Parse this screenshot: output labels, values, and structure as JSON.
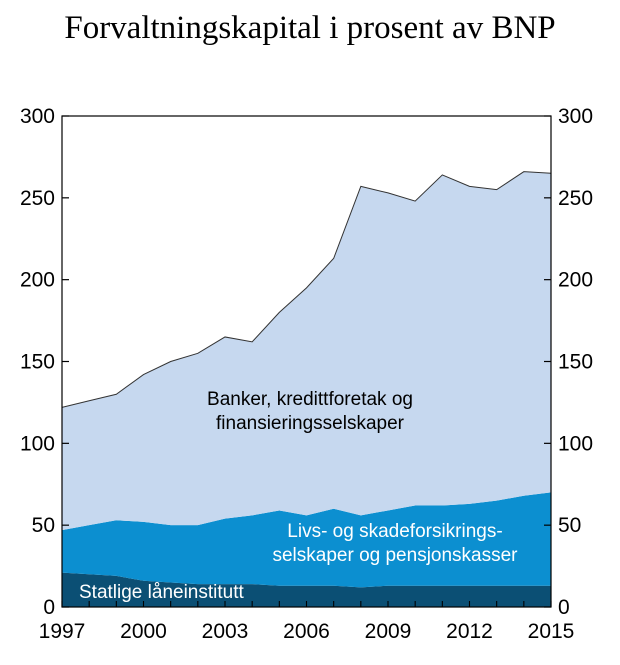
{
  "chart_data": {
    "type": "area",
    "stacked": true,
    "title": "Forvaltningskapital i prosent av BNP",
    "xlabel": "",
    "ylabel": "",
    "x": [
      1997,
      1998,
      1999,
      2000,
      2001,
      2002,
      2003,
      2004,
      2005,
      2006,
      2007,
      2008,
      2009,
      2010,
      2011,
      2012,
      2013,
      2014,
      2015
    ],
    "xlim": [
      1997,
      2015
    ],
    "ylim": [
      0,
      300
    ],
    "x_ticks": [
      "1997",
      "2000",
      "2003",
      "2006",
      "2009",
      "2012",
      "2015"
    ],
    "y_ticks": [
      "0",
      "50",
      "100",
      "150",
      "200",
      "250",
      "300"
    ],
    "grid": false,
    "legend": "none",
    "series": [
      {
        "name": "Statlige låneinstitutt",
        "color": "#0b4f74",
        "label_color": "#ffffff",
        "values": [
          21,
          20,
          19,
          16,
          15,
          14,
          14,
          14,
          13,
          13,
          13,
          12,
          13,
          13,
          13,
          13,
          13,
          13,
          13
        ]
      },
      {
        "name": "Livs- og skadeforsikrings-selskaper og pensjonskasser",
        "label_lines": [
          "Livs- og skadeforsikrings-",
          "selskaper og pensjonskasser"
        ],
        "color": "#0c8fd0",
        "label_color": "#ffffff",
        "values": [
          26,
          30,
          34,
          36,
          35,
          36,
          40,
          42,
          46,
          43,
          47,
          44,
          46,
          49,
          49,
          50,
          52,
          55,
          57
        ]
      },
      {
        "name": "Banker, kredittforetak og finansieringsselskaper",
        "label_lines": [
          "Banker, kredittforetak og",
          "finansieringsselskaper"
        ],
        "color": "#c6d8ef",
        "label_color": "#000000",
        "values": [
          75,
          76,
          77,
          90,
          100,
          105,
          111,
          106,
          121,
          139,
          153,
          201,
          194,
          186,
          202,
          194,
          190,
          198,
          195
        ]
      }
    ]
  }
}
